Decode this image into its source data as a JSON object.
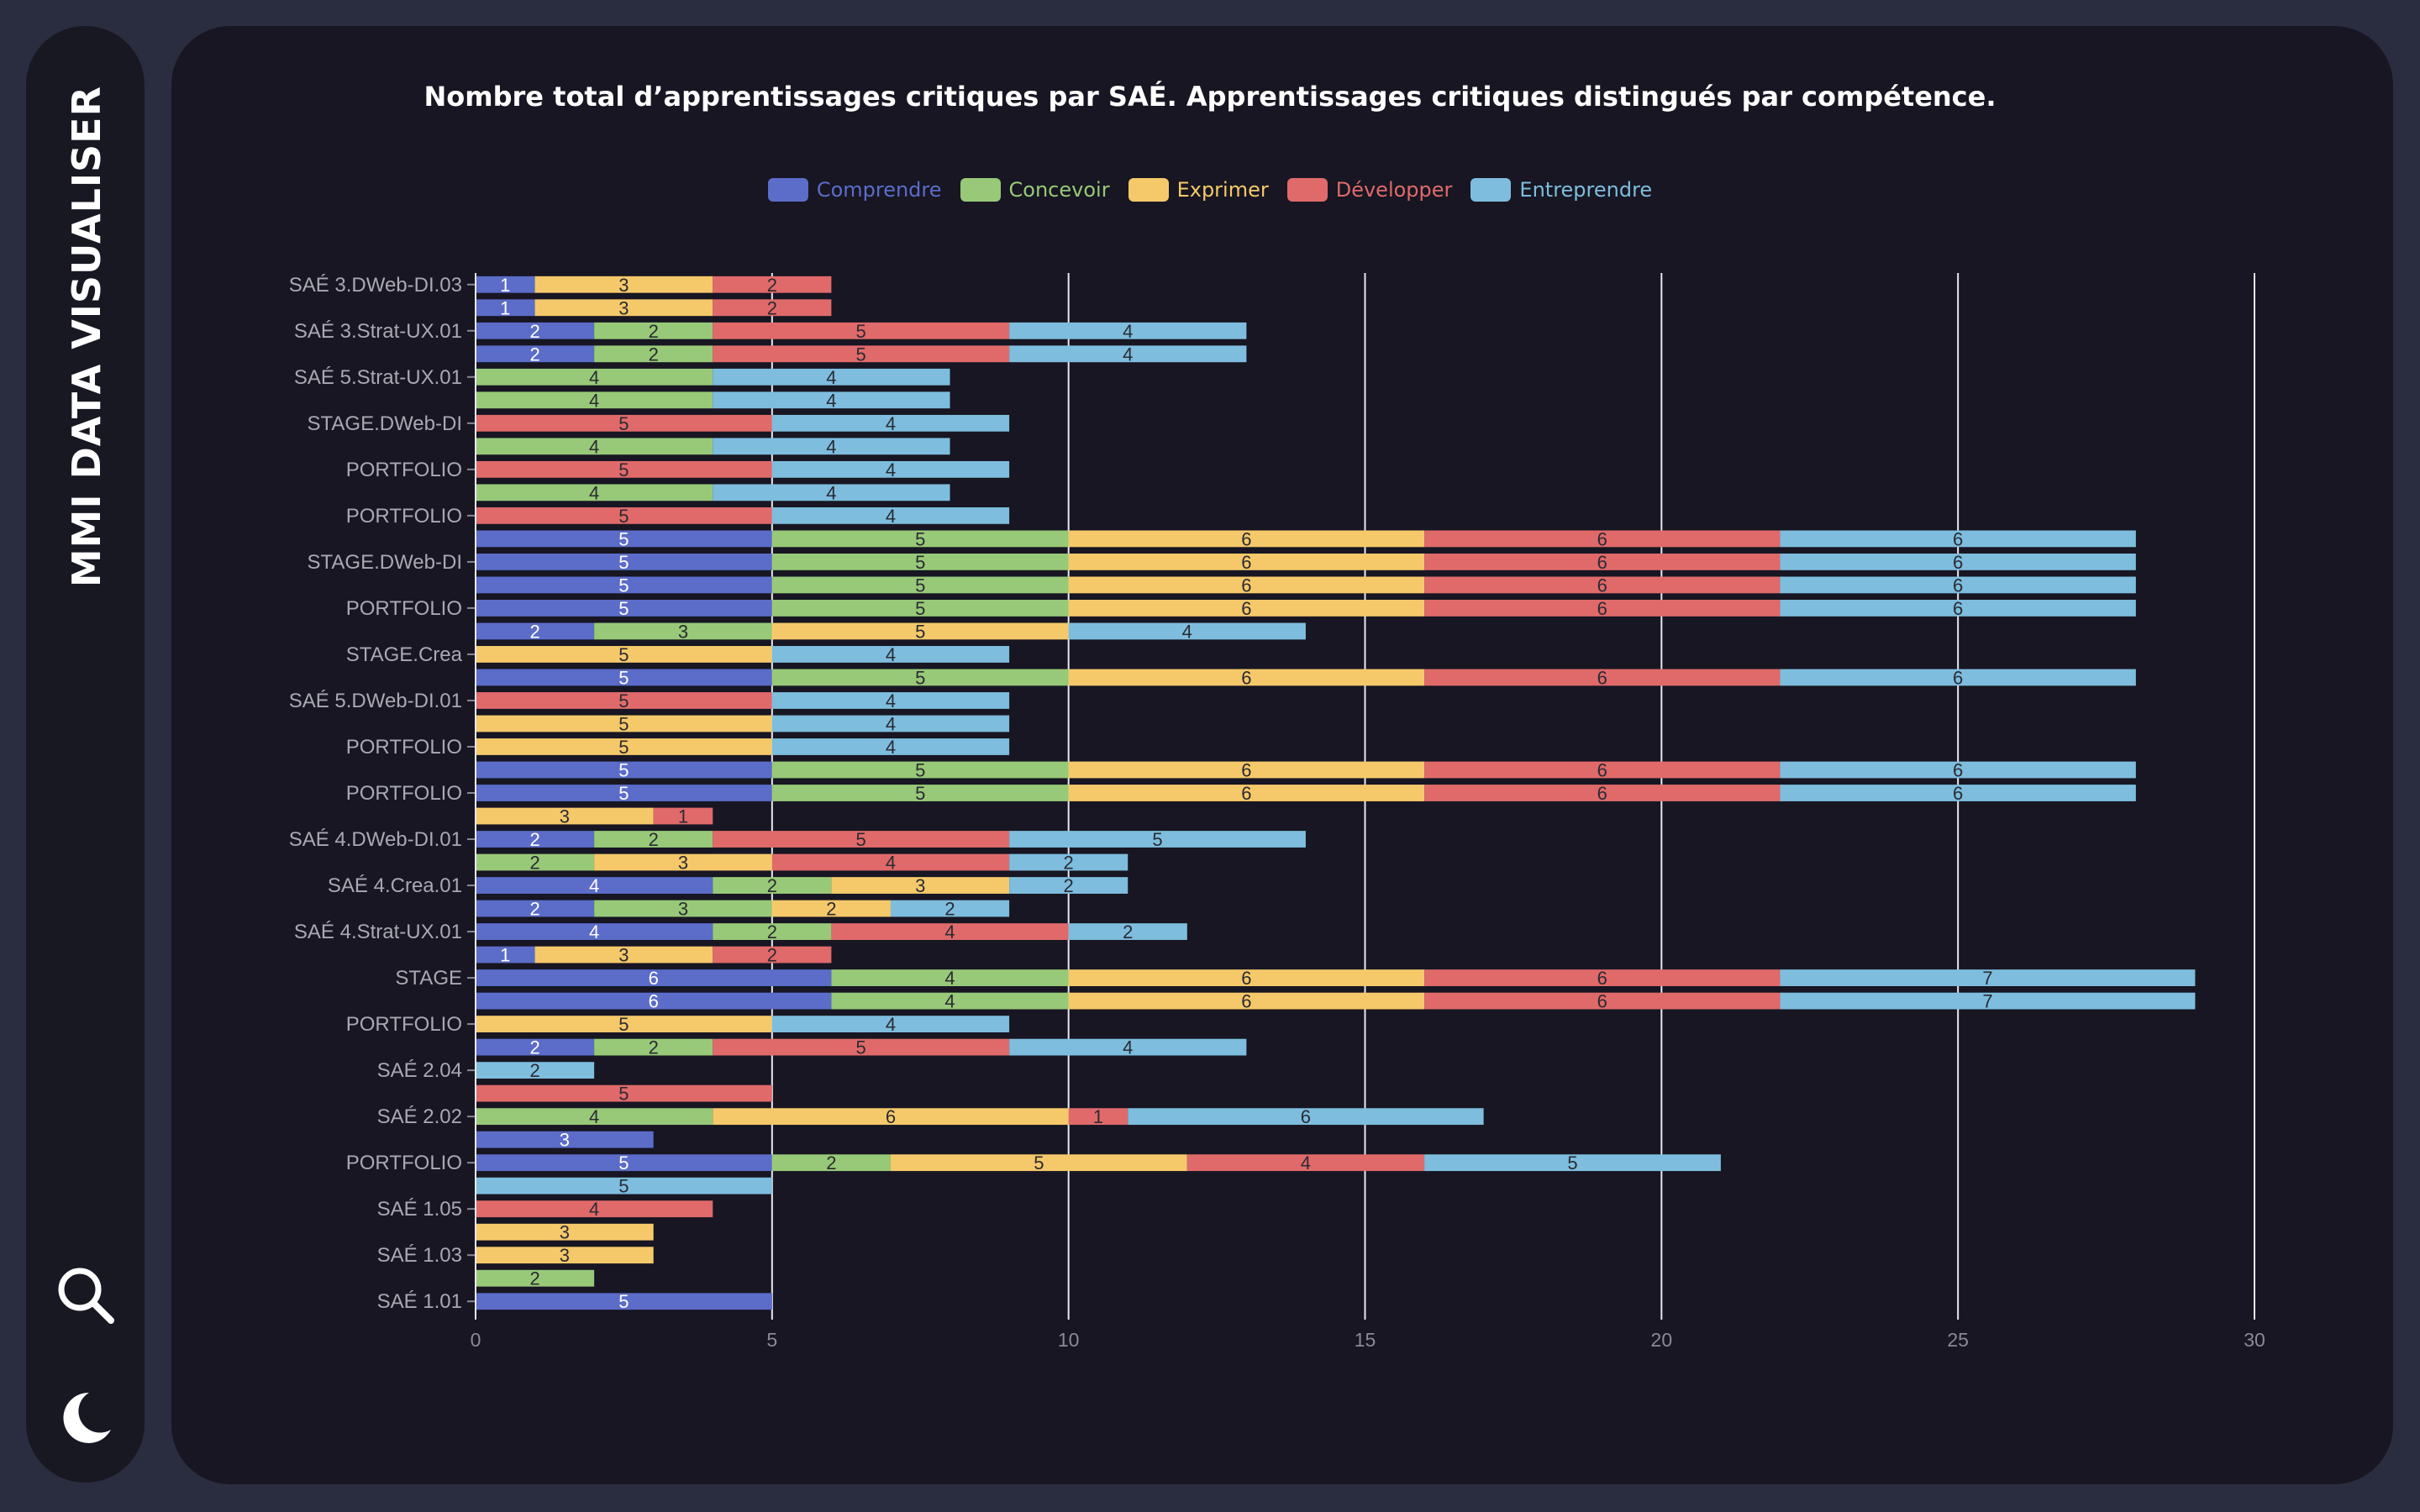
{
  "app": {
    "brand": "MMI DATA VISUALISER"
  },
  "sidebar": {
    "icons": [
      {
        "name": "search-icon"
      },
      {
        "name": "moon-icon"
      }
    ]
  },
  "chart_data": {
    "type": "bar",
    "orientation": "horizontal",
    "stacked": true,
    "title": "Nombre total d’apprentissages critiques par SAÉ. Apprentissages critiques distingués par compétence.",
    "xlim": [
      0,
      30
    ],
    "x_ticks": [
      0,
      5,
      10,
      15,
      20,
      25,
      30
    ],
    "grid": true,
    "legend_position": "top",
    "series": [
      {
        "name": "Comprendre",
        "color": "#5b6cc9"
      },
      {
        "name": "Concevoir",
        "color": "#98c978"
      },
      {
        "name": "Exprimer",
        "color": "#f5c96a"
      },
      {
        "name": "Développer",
        "color": "#e06a6a"
      },
      {
        "name": "Entreprendre",
        "color": "#7ebddd"
      }
    ],
    "categories": [
      "SAÉ 3.DWeb-DI.03",
      "",
      "SAÉ 3.Strat-UX.01",
      "",
      "SAÉ 5.Strat-UX.01",
      "",
      "STAGE.DWeb-DI",
      "",
      "PORTFOLIO",
      "",
      "PORTFOLIO",
      "",
      "STAGE.DWeb-DI",
      "",
      "PORTFOLIO",
      "",
      "STAGE.Crea",
      "",
      "SAÉ 5.DWeb-DI.01",
      "",
      "PORTFOLIO",
      "",
      "PORTFOLIO",
      "",
      "SAÉ 4.DWeb-DI.01",
      "",
      "SAÉ 4.Crea.01",
      "",
      "SAÉ 4.Strat-UX.01",
      "",
      "STAGE",
      "",
      "PORTFOLIO",
      "",
      "SAÉ 2.04",
      "",
      "SAÉ 2.02",
      "",
      "PORTFOLIO",
      "",
      "SAÉ 1.05",
      "",
      "SAÉ 1.03",
      "",
      "SAÉ 1.01"
    ],
    "values": [
      [
        1,
        0,
        3,
        2,
        0
      ],
      [
        1,
        0,
        3,
        2,
        0
      ],
      [
        2,
        2,
        0,
        5,
        4
      ],
      [
        2,
        2,
        0,
        5,
        4
      ],
      [
        0,
        4,
        0,
        0,
        4
      ],
      [
        0,
        4,
        0,
        0,
        4
      ],
      [
        0,
        0,
        0,
        5,
        4
      ],
      [
        0,
        4,
        0,
        0,
        4
      ],
      [
        0,
        0,
        0,
        5,
        4
      ],
      [
        0,
        4,
        0,
        0,
        4
      ],
      [
        0,
        0,
        0,
        5,
        4
      ],
      [
        5,
        5,
        6,
        6,
        6
      ],
      [
        5,
        5,
        6,
        6,
        6
      ],
      [
        5,
        5,
        6,
        6,
        6
      ],
      [
        5,
        5,
        6,
        6,
        6
      ],
      [
        2,
        3,
        5,
        0,
        4
      ],
      [
        0,
        0,
        5,
        0,
        4
      ],
      [
        5,
        5,
        6,
        6,
        6
      ],
      [
        0,
        0,
        0,
        5,
        4
      ],
      [
        0,
        0,
        5,
        0,
        4
      ],
      [
        0,
        0,
        5,
        0,
        4
      ],
      [
        5,
        5,
        6,
        6,
        6
      ],
      [
        5,
        5,
        6,
        6,
        6
      ],
      [
        0,
        0,
        3,
        1,
        0
      ],
      [
        2,
        2,
        0,
        5,
        5
      ],
      [
        0,
        2,
        3,
        4,
        2
      ],
      [
        4,
        2,
        3,
        0,
        2
      ],
      [
        2,
        3,
        2,
        0,
        2
      ],
      [
        4,
        2,
        0,
        4,
        2
      ],
      [
        1,
        0,
        3,
        2,
        0
      ],
      [
        6,
        4,
        6,
        6,
        7
      ],
      [
        6,
        4,
        6,
        6,
        7
      ],
      [
        0,
        0,
        5,
        0,
        4
      ],
      [
        2,
        2,
        0,
        5,
        4
      ],
      [
        0,
        0,
        0,
        0,
        2
      ],
      [
        0,
        0,
        0,
        5,
        0
      ],
      [
        0,
        4,
        6,
        1,
        6
      ],
      [
        3,
        0,
        0,
        0,
        0
      ],
      [
        5,
        2,
        5,
        4,
        5
      ],
      [
        0,
        0,
        0,
        0,
        5
      ],
      [
        0,
        0,
        0,
        4,
        0
      ],
      [
        0,
        0,
        3,
        0,
        0
      ],
      [
        0,
        0,
        3,
        0,
        0
      ],
      [
        0,
        2,
        0,
        0,
        0
      ],
      [
        5,
        0,
        0,
        0,
        0
      ]
    ]
  }
}
